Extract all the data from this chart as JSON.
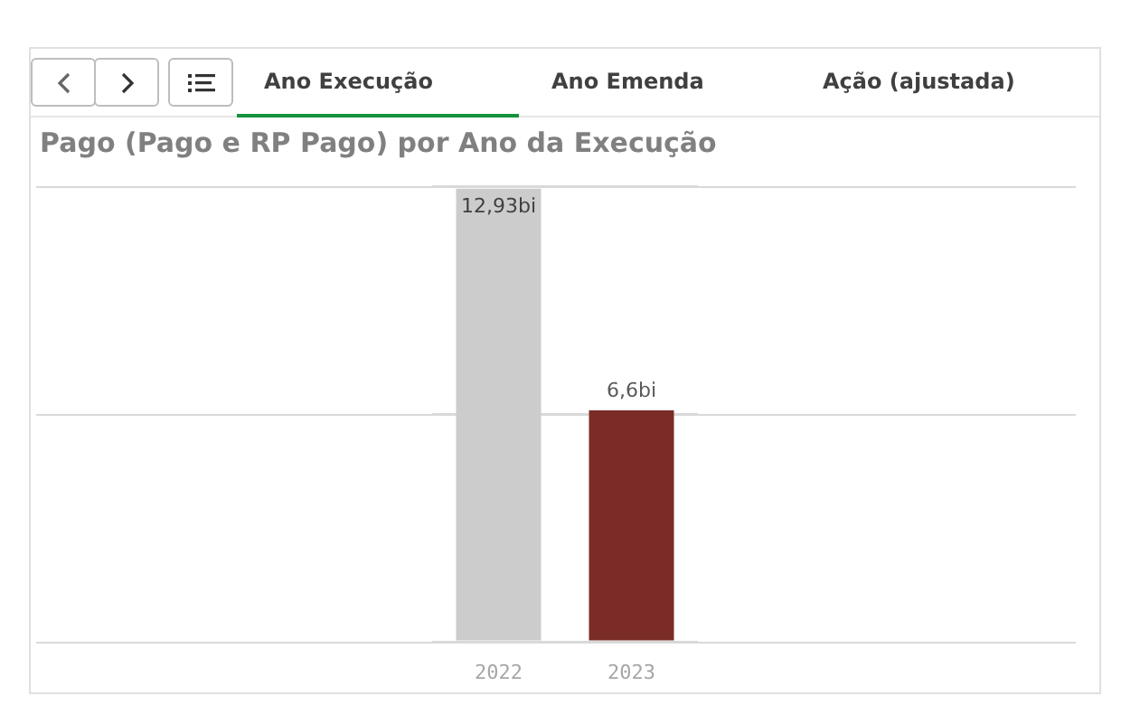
{
  "chart_data": {
    "type": "bar",
    "title": "Pago (Pago e RP Pago) por Ano da Execução",
    "annotations": [
      "Ano Execução",
      "Ano Emenda",
      "Ação (ajustada)"
    ],
    "categories": [
      "2022",
      "2023"
    ],
    "values": [
      12.93,
      6.6
    ],
    "colors": [
      "#cccccc",
      "#7b2c26"
    ],
    "value_labels": [
      "12,93bi",
      "6,6bi"
    ],
    "ylim": [
      0,
      13
    ],
    "yticks": [
      {
        "value": 0,
        "label": null
      },
      {
        "value": 6.5,
        "label": null
      },
      {
        "value": 13,
        "label": null
      }
    ],
    "grid": "y",
    "tick_labels": "x",
    "legend": false
  }
}
